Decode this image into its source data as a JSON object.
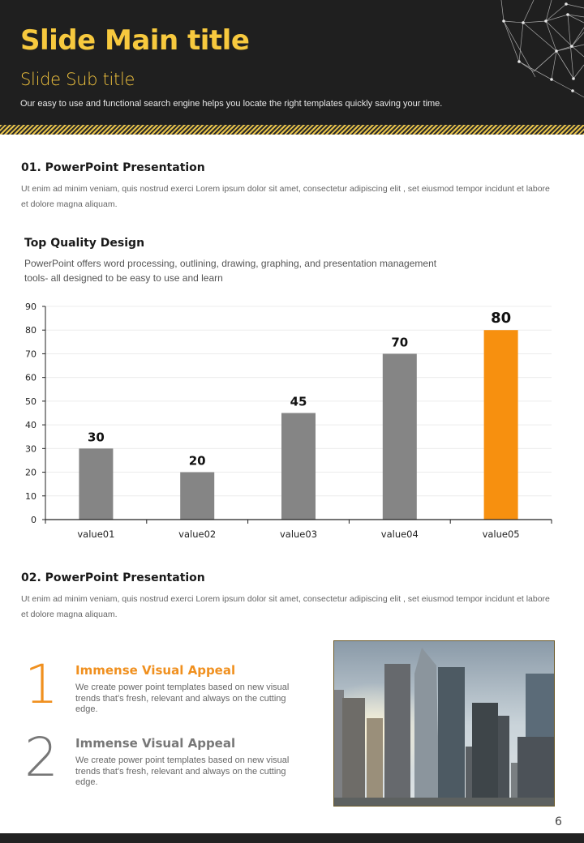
{
  "header": {
    "main_title": "Slide Main title",
    "sub_title": "Slide Sub title",
    "description": "Our easy to use and functional search engine helps you locate the right templates quickly saving your time."
  },
  "section1": {
    "title": "01. PowerPoint Presentation",
    "body": "Ut enim ad minim veniam, quis nostrud exerci  Lorem ipsum dolor sit amet, consectetur adipiscing elit , set eiusmod tempor incidunt et labore et dolore magna aliquam."
  },
  "chart_section": {
    "title": "Top Quality Design",
    "description": "PowerPoint offers word processing, outlining, drawing, graphing, and presentation management tools- all designed to be easy to use and learn"
  },
  "chart_data": {
    "type": "bar",
    "title": "Top Quality Design",
    "xlabel": "",
    "ylabel": "",
    "categories": [
      "value01",
      "value02",
      "value03",
      "value04",
      "value05"
    ],
    "values": [
      30,
      20,
      45,
      70,
      80
    ],
    "data_labels": [
      "30",
      "20",
      "45",
      "70",
      "80"
    ],
    "ylim": [
      0,
      90
    ],
    "yticks": [
      "0",
      "10",
      "20",
      "30",
      "40",
      "50",
      "60",
      "70",
      "80",
      "90"
    ],
    "grid": true,
    "legend": "none",
    "colors": [
      "#858585",
      "#858585",
      "#858585",
      "#858585",
      "#f7900f"
    ]
  },
  "section2": {
    "title": "02. PowerPoint Presentation",
    "body": "Ut enim ad minim veniam, quis nostrud exerci  Lorem ipsum dolor sit amet, consectetur adipiscing elit , set eiusmod tempor incidunt et labore et dolore magna aliquam."
  },
  "features": [
    {
      "number": "1",
      "title": "Immense Visual Appeal",
      "text": "We create power point templates based on new visual trends that's fresh, relevant and always on the cutting edge.",
      "color": "#f0901f"
    },
    {
      "number": "2",
      "title": "Immense Visual Appeal",
      "text": "We create power point templates based on new visual trends that's fresh, relevant and always on the cutting edge.",
      "color": "#777777"
    }
  ],
  "page_number": "6",
  "colors": {
    "accent_yellow": "#f7c93e",
    "accent_orange": "#f7900f",
    "header_bg": "#1f1f1f"
  },
  "photo": {
    "icon": "city-skyline-photo"
  }
}
